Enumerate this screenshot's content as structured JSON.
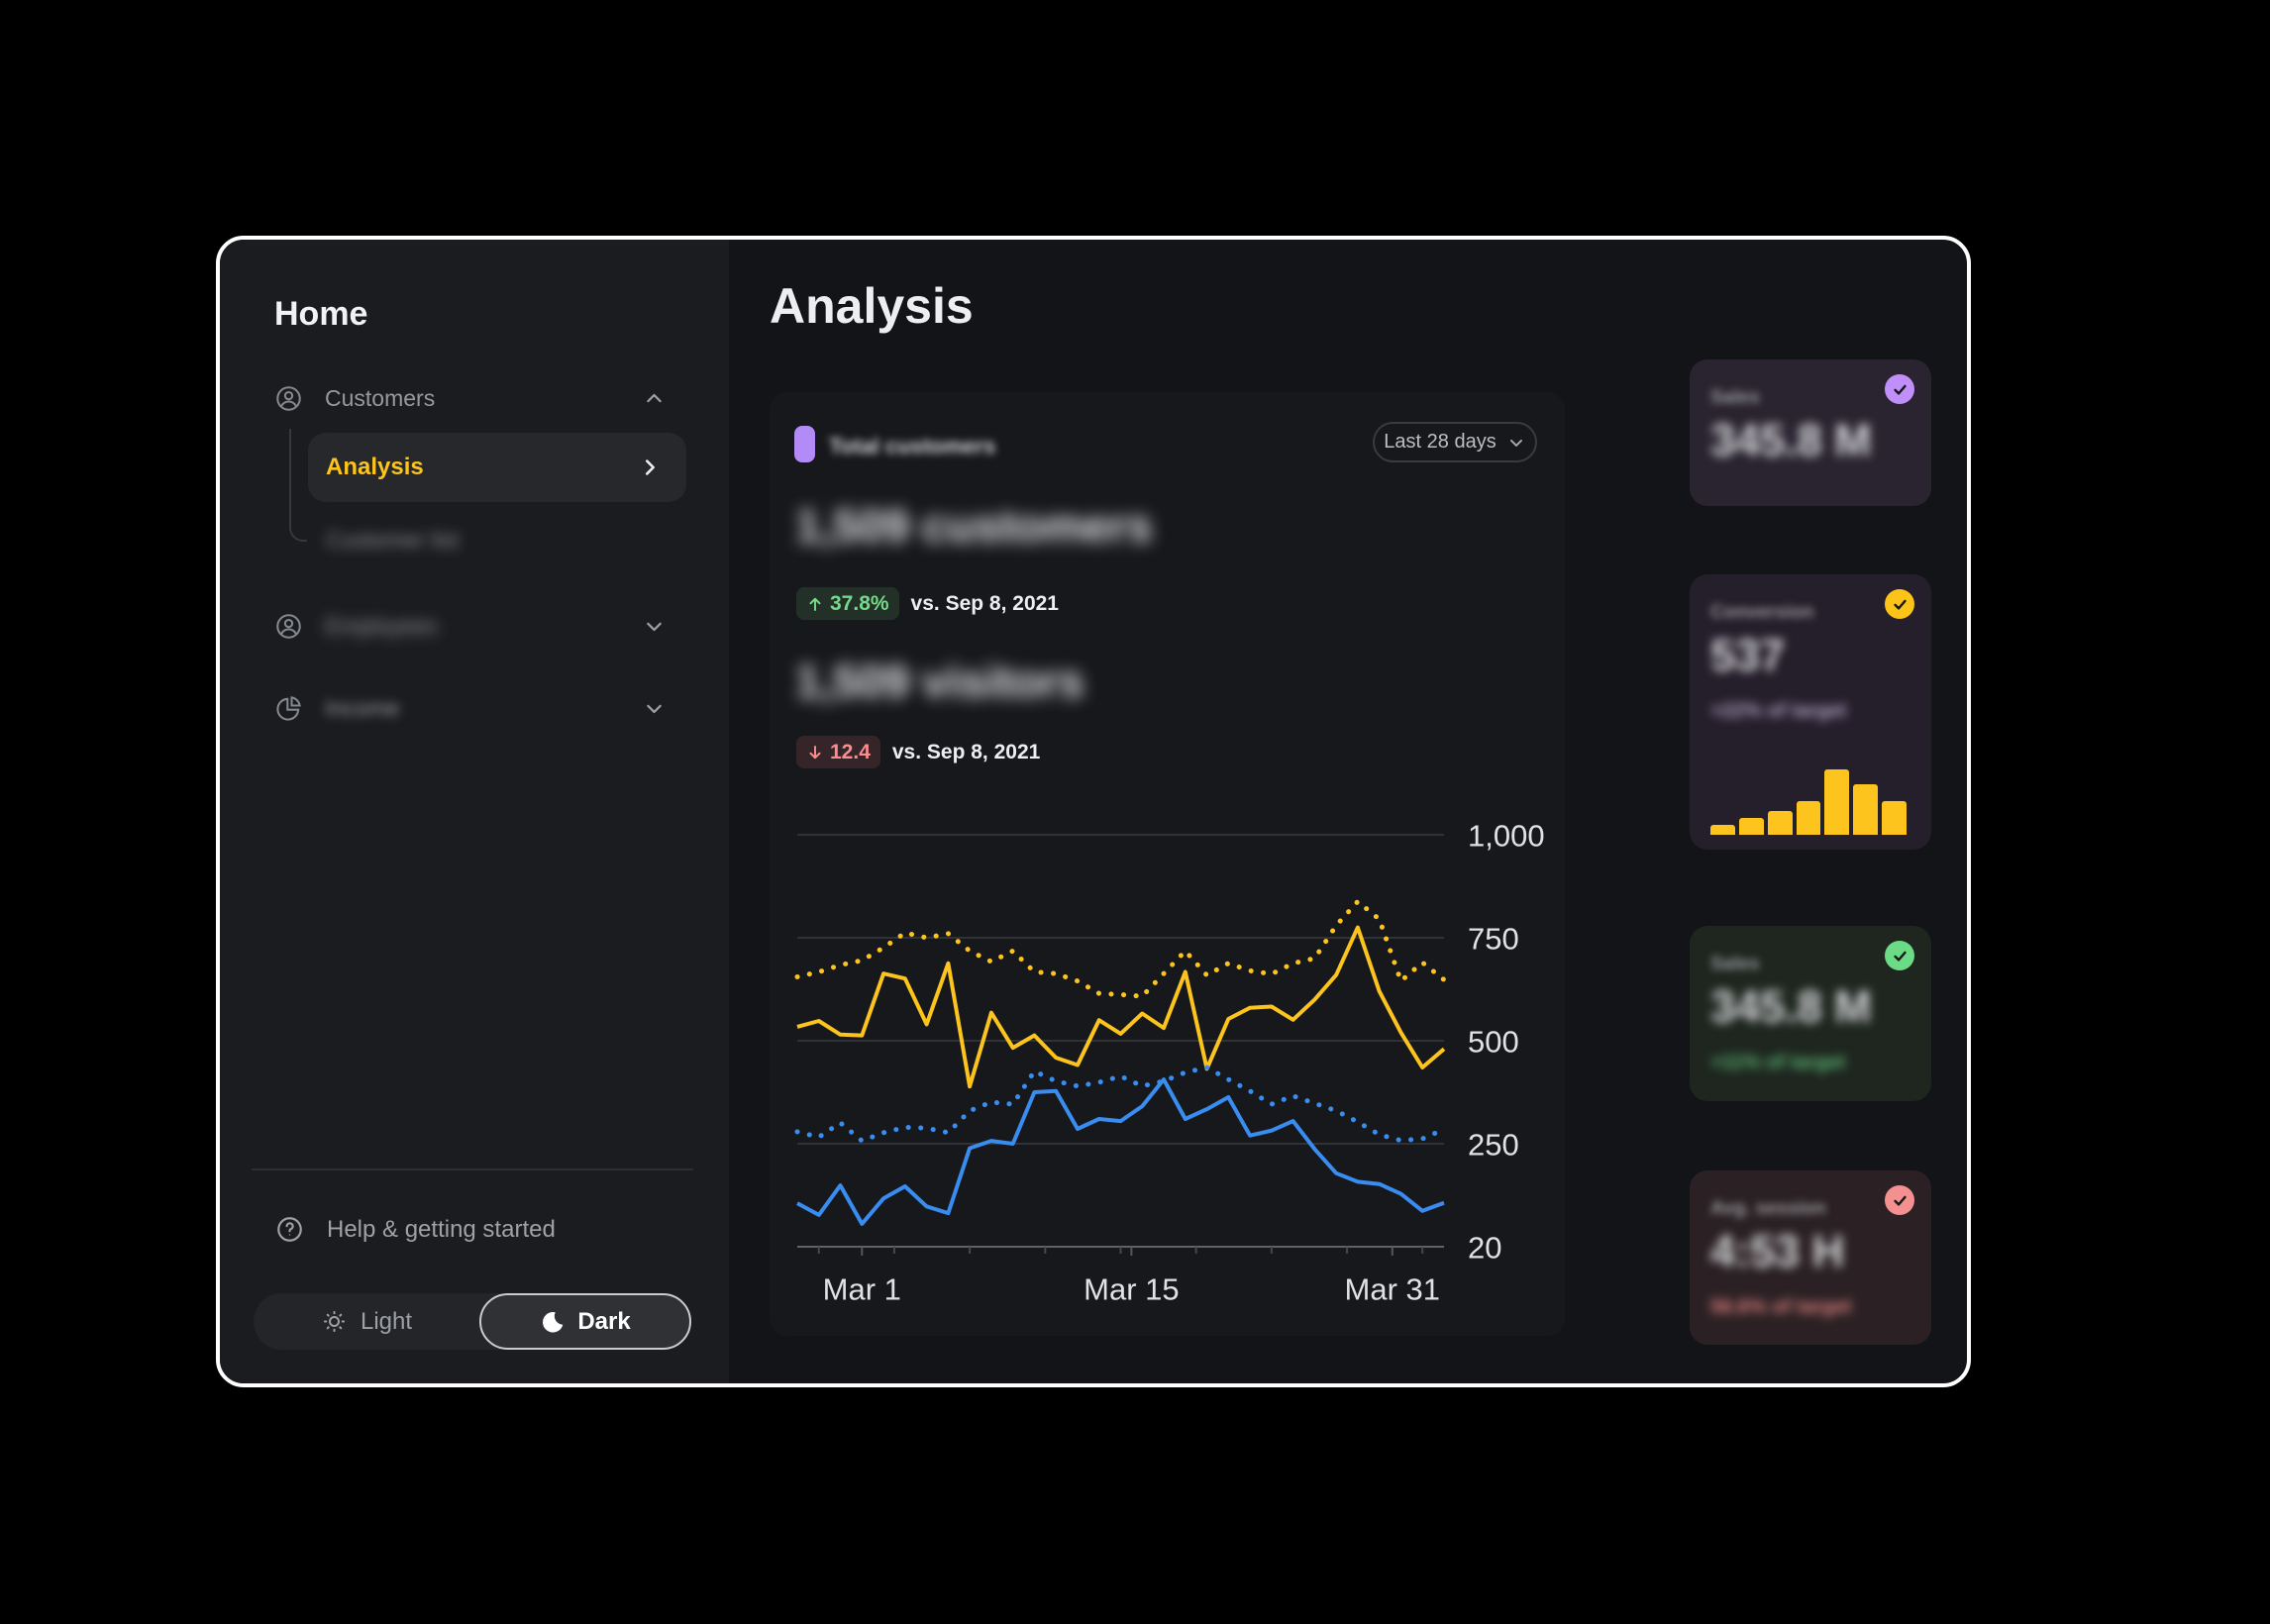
{
  "sidebar": {
    "title": "Home",
    "customers_item": "Customers",
    "analysis_item": "Analysis",
    "blurred_subitem": "Customer list",
    "blurred_item": "Employees",
    "income_item": "Income",
    "help_label": "Help & getting started",
    "theme_toggle": {
      "light": "Light",
      "dark": "Dark"
    }
  },
  "main": {
    "title": "Analysis",
    "panel": {
      "legend_label": "Total customers",
      "range_button": "Last 28 days",
      "metric_customers": {
        "value": "1,509 customers",
        "delta": "37.8%",
        "compare": "vs. Sep 8, 2021"
      },
      "metric_visitors": {
        "value": "1,509 visitors",
        "delta": "12.4",
        "compare": "vs. Sep 8, 2021"
      }
    }
  },
  "chart_data": {
    "type": "line",
    "title": "Total customers",
    "x_unit": "day of March 2021",
    "x": [
      1,
      2,
      3,
      4,
      5,
      6,
      7,
      8,
      9,
      10,
      11,
      12,
      13,
      14,
      15,
      16,
      17,
      18,
      19,
      20,
      21,
      22,
      23,
      24,
      25,
      26,
      27,
      28,
      29,
      30,
      31
    ],
    "series": [
      {
        "name": "customers",
        "style": "solid",
        "color": "#fcc41d",
        "values": [
          534,
          548,
          515,
          513,
          663,
          651,
          540,
          688,
          389,
          568,
          483,
          513,
          459,
          441,
          550,
          517,
          566,
          531,
          667,
          432,
          553,
          580,
          583,
          551,
          600,
          660,
          775,
          620,
          520,
          435,
          480
        ]
      },
      {
        "name": "customers_previous",
        "style": "dotted",
        "color": "#fcc41d",
        "values": [
          655,
          667,
          684,
          695,
          726,
          762,
          750,
          760,
          718,
          692,
          718,
          667,
          663,
          645,
          615,
          612,
          608,
          663,
          718,
          659,
          688,
          670,
          662,
          688,
          700,
          780,
          838,
          795,
          645,
          690,
          648
        ]
      },
      {
        "name": "visitors",
        "style": "solid",
        "color": "#3a8df0",
        "values": [
          117,
          91,
          157,
          71,
          128,
          155,
          110,
          95,
          240,
          257,
          250,
          375,
          378,
          286,
          310,
          305,
          341,
          406,
          310,
          334,
          363,
          270,
          282,
          305,
          238,
          184,
          165,
          160,
          138,
          100,
          118
        ]
      },
      {
        "name": "visitors_previous",
        "style": "dotted",
        "color": "#3a8df0",
        "values": [
          279,
          266,
          301,
          257,
          277,
          290,
          288,
          277,
          330,
          351,
          346,
          426,
          402,
          390,
          399,
          414,
          390,
          402,
          423,
          435,
          406,
          378,
          346,
          366,
          348,
          330,
          303,
          272,
          258,
          262,
          285
        ]
      }
    ],
    "y_ticks": [
      20,
      250,
      500,
      750,
      1000
    ],
    "y_tick_labels": [
      "20",
      "250",
      "500",
      "750",
      "1,000"
    ],
    "x_labels": [
      {
        "text": "Mar 1",
        "day": 4
      },
      {
        "text": "Mar 15",
        "day": 16.5
      },
      {
        "text": "Mar 31",
        "day": 28.6
      }
    ],
    "minor_tick_days": [
      2,
      5.5,
      9,
      12.5,
      16,
      19.5,
      23,
      26.5,
      30
    ],
    "ylim": [
      20,
      1000
    ],
    "grid": true,
    "legend_position": "none"
  },
  "stat_cards": [
    {
      "title": "Sales",
      "value": "345.8 M",
      "subtitle": "",
      "badge_color": "#c18ffa",
      "bg": "#2a2430"
    },
    {
      "title": "Conversion",
      "value": "537",
      "subtitle": "+22% of target",
      "subtitle_color": "#b3a8c4",
      "badge_color": "#fcc419",
      "bg": "#251e2b",
      "bars": [
        15,
        25,
        37,
        52,
        100,
        78,
        52
      ]
    },
    {
      "title": "Sales",
      "value": "345.8 M",
      "subtitle": "+11% of target",
      "subtitle_color": "#5cb874",
      "badge_color": "#6bdc85",
      "bg": "#1e261f"
    },
    {
      "title": "Avg. session",
      "value": "4:53 H",
      "subtitle": "56.6% of target",
      "subtitle_color": "#de8080",
      "badge_color": "#f49090",
      "bg": "#2b2124"
    }
  ]
}
